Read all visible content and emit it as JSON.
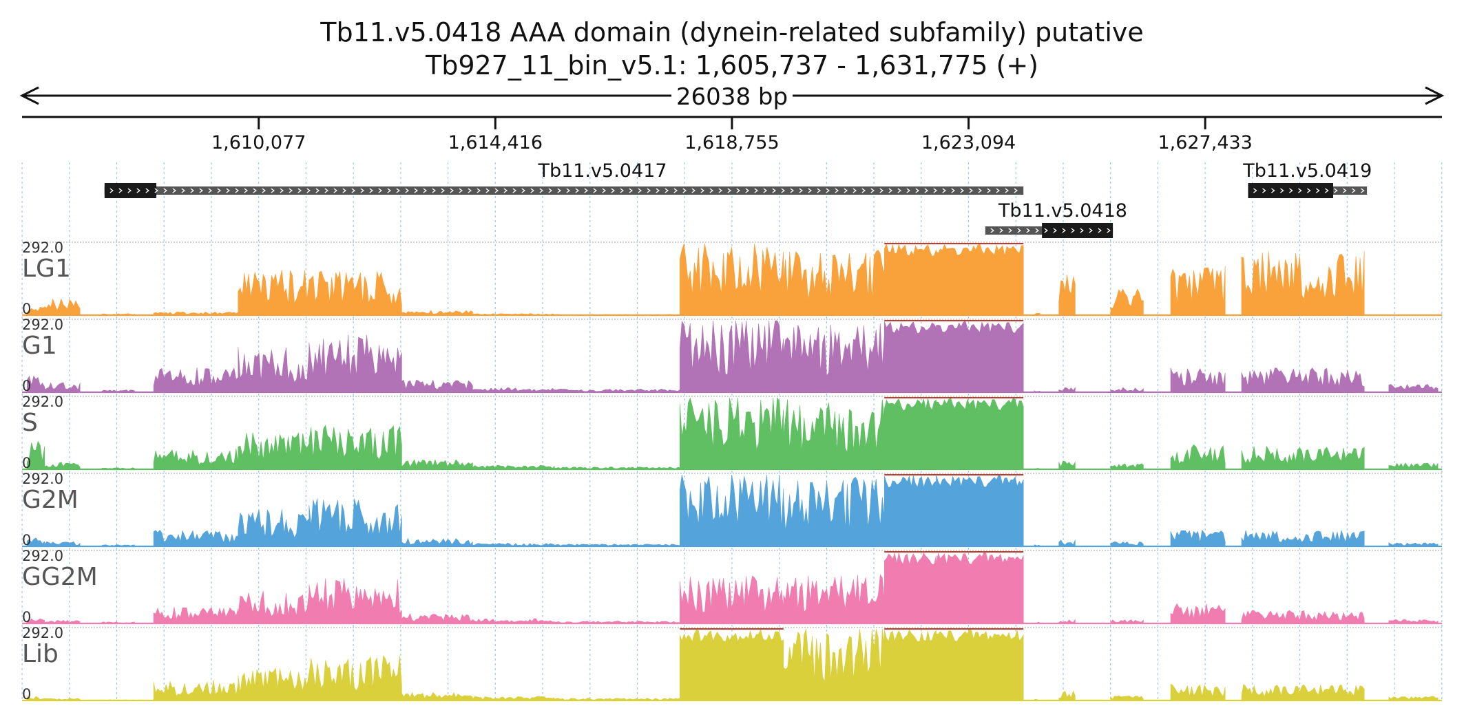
{
  "title": "Tb11.v5.0418  AAA domain (dynein-related subfamily)  putative",
  "subtitle": "Tb927_11_bin_v5.1: 1,605,737 - 1,631,775 (+)",
  "span_label": "26038 bp",
  "colors": {
    "LG1": "#f9a23b",
    "G1": "#b173b6",
    "S": "#5fbf62",
    "G2M": "#55a3db",
    "GG2M": "#f07cb0",
    "Lib": "#d9d03c",
    "clip": "#c0392b",
    "gene_cds": "#1a1a1a",
    "gene_utr": "#555555",
    "grid": "#9fc7e6"
  },
  "chart_data": {
    "type": "area",
    "region": {
      "chrom": "Tb927_11_bin_v5.1",
      "start": 1605737,
      "end": 1631775,
      "strand": "+"
    },
    "xticks": [
      {
        "value": 1610077,
        "label": "1,610,077"
      },
      {
        "value": 1614416,
        "label": "1,614,416"
      },
      {
        "value": 1618755,
        "label": "1,618,755"
      },
      {
        "value": 1623094,
        "label": "1,623,094"
      },
      {
        "value": 1627433,
        "label": "1,627,433"
      }
    ],
    "genes": [
      {
        "name": "Tb11.v5.0417",
        "start": 1607250,
        "end": 1624100,
        "cds_start": 1607250,
        "cds_end": 1608200,
        "strand": "+",
        "row": 0
      },
      {
        "name": "Tb11.v5.0418",
        "start": 1623400,
        "end": 1625740,
        "cds_start": 1624440,
        "cds_end": 1625740,
        "strand": "+",
        "row": 1
      },
      {
        "name": "Tb11.v5.0419",
        "start": 1628220,
        "end": 1630400,
        "cds_start": 1628220,
        "cds_end": 1629780,
        "strand": "+",
        "row": 0
      }
    ],
    "ylim": [
      0,
      292.0
    ],
    "y_max_label": "292.0",
    "y_min_label": "0",
    "segments": [
      {
        "start": 1605830,
        "end": 1606150,
        "amps": [
          0.1,
          0.22,
          0.35,
          0.12,
          0.06,
          0.05
        ]
      },
      {
        "start": 1606150,
        "end": 1606800,
        "amps": [
          0.2,
          0.12,
          0.09,
          0.06,
          0.04,
          0.03
        ]
      },
      {
        "start": 1607200,
        "end": 1607800,
        "amps": [
          0.02,
          0.03,
          0.02,
          0.02,
          0.02,
          0.01
        ]
      },
      {
        "start": 1608150,
        "end": 1609700,
        "amps": [
          0.04,
          0.3,
          0.25,
          0.2,
          0.2,
          0.25
        ]
      },
      {
        "start": 1609700,
        "end": 1611000,
        "amps": [
          0.55,
          0.55,
          0.45,
          0.45,
          0.4,
          0.4
        ]
      },
      {
        "start": 1611000,
        "end": 1612700,
        "amps": [
          0.55,
          0.7,
          0.55,
          0.6,
          0.55,
          0.55
        ]
      },
      {
        "start": 1612700,
        "end": 1614000,
        "amps": [
          0.06,
          0.15,
          0.12,
          0.1,
          0.12,
          0.1
        ]
      },
      {
        "start": 1614000,
        "end": 1615500,
        "amps": [
          0.02,
          0.06,
          0.05,
          0.04,
          0.06,
          0.05
        ]
      },
      {
        "start": 1615500,
        "end": 1617800,
        "amps": [
          0.01,
          0.04,
          0.03,
          0.03,
          0.03,
          0.03
        ]
      },
      {
        "start": 1617800,
        "end": 1619700,
        "amps": [
          0.92,
          0.95,
          0.95,
          0.95,
          0.6,
          1.0
        ]
      },
      {
        "start": 1619700,
        "end": 1621550,
        "amps": [
          0.8,
          0.85,
          0.85,
          0.85,
          0.6,
          0.95
        ]
      },
      {
        "start": 1621550,
        "end": 1622500,
        "amps": [
          1.0,
          1.0,
          1.0,
          1.0,
          1.0,
          1.0
        ]
      },
      {
        "start": 1622500,
        "end": 1624100,
        "amps": [
          1.0,
          1.0,
          1.0,
          1.0,
          1.0,
          1.0
        ]
      },
      {
        "start": 1624300,
        "end": 1624400,
        "amps": [
          0.03,
          0.02,
          0.02,
          0.02,
          0.02,
          0.02
        ]
      },
      {
        "start": 1624750,
        "end": 1625050,
        "amps": [
          0.5,
          0.06,
          0.12,
          0.08,
          0.05,
          0.12
        ]
      },
      {
        "start": 1625700,
        "end": 1626300,
        "amps": [
          0.33,
          0.06,
          0.07,
          0.06,
          0.05,
          0.06
        ]
      },
      {
        "start": 1626800,
        "end": 1627800,
        "amps": [
          0.6,
          0.3,
          0.3,
          0.2,
          0.25,
          0.2
        ]
      },
      {
        "start": 1628100,
        "end": 1630350,
        "amps": [
          0.8,
          0.3,
          0.28,
          0.2,
          0.16,
          0.2
        ]
      },
      {
        "start": 1630800,
        "end": 1631700,
        "amps": [
          0.0,
          0.1,
          0.08,
          0.05,
          0.05,
          0.05
        ]
      }
    ],
    "series": [
      {
        "name": "LG1"
      },
      {
        "name": "G1"
      },
      {
        "name": "S"
      },
      {
        "name": "G2M"
      },
      {
        "name": "GG2M"
      },
      {
        "name": "Lib"
      }
    ]
  }
}
